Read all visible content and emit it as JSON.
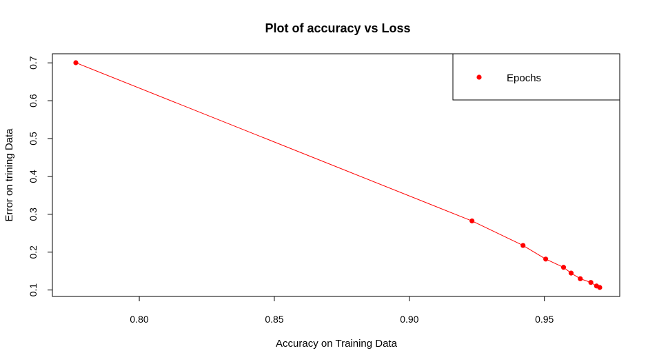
{
  "chart_data": {
    "type": "line",
    "title": "Plot of accuracy vs Loss",
    "xlabel": "Accuracy on Training Data",
    "ylabel": "Error on trining Data",
    "xlim": [
      0.7765,
      0.9705
    ],
    "ylim": [
      0.1067,
      0.7003
    ],
    "xticks": [
      0.8,
      0.85,
      0.9,
      0.95
    ],
    "xtick_labels": [
      "0.80",
      "0.85",
      "0.90",
      "0.95"
    ],
    "yticks": [
      0.1,
      0.2,
      0.3,
      0.4,
      0.5,
      0.6,
      0.7
    ],
    "ytick_labels": [
      "0.1",
      "0.2",
      "0.3",
      "0.4",
      "0.5",
      "0.6",
      "0.7"
    ],
    "grid": false,
    "legend": {
      "placement": "top-right",
      "entries": [
        "Epochs"
      ]
    },
    "series": [
      {
        "name": "Epochs",
        "color": "#ff0000",
        "points": [
          {
            "x": 0.7765,
            "y": 0.7003
          },
          {
            "x": 0.9232,
            "y": 0.2824
          },
          {
            "x": 0.9421,
            "y": 0.2177
          },
          {
            "x": 0.9505,
            "y": 0.1817
          },
          {
            "x": 0.9571,
            "y": 0.1599
          },
          {
            "x": 0.9599,
            "y": 0.1447
          },
          {
            "x": 0.9633,
            "y": 0.1298
          },
          {
            "x": 0.9672,
            "y": 0.12
          },
          {
            "x": 0.9693,
            "y": 0.1107
          },
          {
            "x": 0.9705,
            "y": 0.1067
          }
        ]
      }
    ]
  }
}
